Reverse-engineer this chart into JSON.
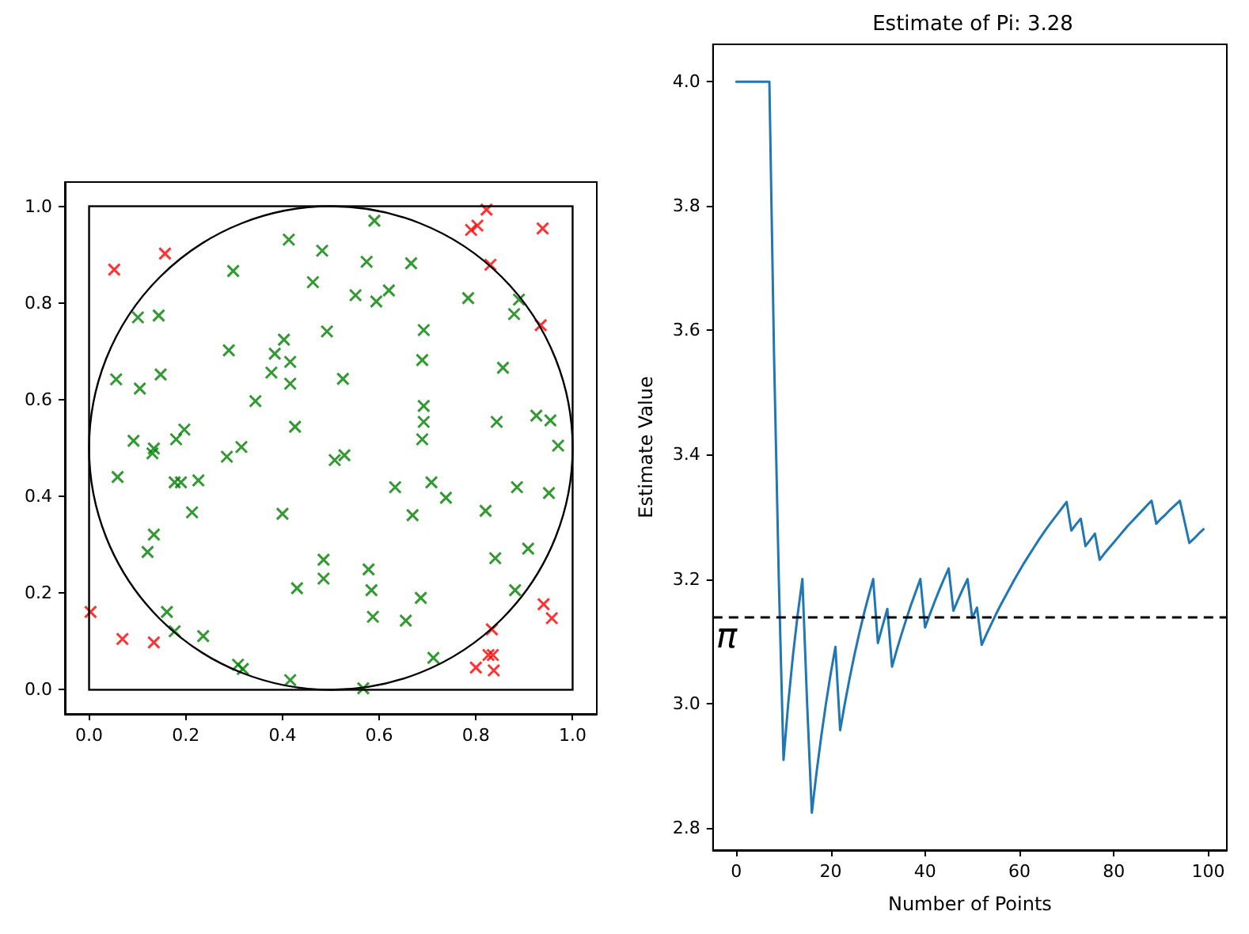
{
  "chart_data": [
    {
      "type": "scatter",
      "xlim": [
        -0.05,
        1.05
      ],
      "ylim": [
        -0.05,
        1.05
      ],
      "xticks": [
        {
          "value": 0,
          "label": "0.0"
        },
        0.2,
        0.4,
        0.6,
        0.8,
        {
          "value": 1,
          "label": "1.0"
        }
      ],
      "yticks": [
        {
          "value": 0,
          "label": "0.0"
        },
        0.2,
        0.4,
        0.6,
        0.8,
        {
          "value": 1,
          "label": "1.0"
        }
      ],
      "series": [
        {
          "color": "#008000",
          "marker": "cross",
          "x": [
            0.413,
            0.482,
            0.298,
            0.463,
            0.101,
            0.144,
            0.492,
            0.289,
            0.403,
            0.384,
            0.416,
            0.377,
            0.416,
            0.056,
            0.105,
            0.148,
            0.344,
            0.426,
            0.092,
            0.131,
            0.134,
            0.18,
            0.197,
            0.285,
            0.315,
            0.059,
            0.177,
            0.19,
            0.226,
            0.213,
            0.4,
            0.134,
            0.121,
            0.485,
            0.485,
            0.43,
            0.161,
            0.177,
            0.236,
            0.308,
            0.318,
            0.416,
            0.59,
            0.574,
            0.666,
            0.551,
            0.594,
            0.62,
            0.784,
            0.889,
            0.879,
            0.692,
            0.689,
            0.856,
            0.525,
            0.692,
            0.692,
            0.689,
            0.843,
            0.925,
            0.954,
            0.97,
            0.508,
            0.528,
            0.633,
            0.708,
            0.738,
            0.669,
            0.885,
            0.951,
            0.82,
            0.578,
            0.584,
            0.587,
            0.655,
            0.686,
            0.84,
            0.908,
            0.881,
            0.712,
            0.567
          ],
          "values": [
            0.931,
            0.908,
            0.866,
            0.843,
            0.77,
            0.774,
            0.741,
            0.702,
            0.724,
            0.695,
            0.678,
            0.656,
            0.633,
            0.642,
            0.623,
            0.652,
            0.597,
            0.544,
            0.515,
            0.489,
            0.499,
            0.518,
            0.538,
            0.482,
            0.502,
            0.44,
            0.429,
            0.429,
            0.433,
            0.367,
            0.364,
            0.321,
            0.285,
            0.269,
            0.23,
            0.21,
            0.161,
            0.121,
            0.111,
            0.052,
            0.043,
            0.02,
            0.97,
            0.885,
            0.882,
            0.816,
            0.803,
            0.826,
            0.81,
            0.807,
            0.777,
            0.744,
            0.682,
            0.666,
            0.643,
            0.587,
            0.554,
            0.518,
            0.554,
            0.567,
            0.557,
            0.505,
            0.475,
            0.485,
            0.419,
            0.429,
            0.397,
            0.361,
            0.419,
            0.407,
            0.37,
            0.249,
            0.206,
            0.151,
            0.143,
            0.19,
            0.272,
            0.292,
            0.206,
            0.066,
            0.003
          ]
        },
        {
          "color": "#ff0000",
          "marker": "cross",
          "x": [
            0.003,
            0.052,
            0.069,
            0.134,
            0.157,
            0.79,
            0.803,
            0.822,
            0.938,
            0.83,
            0.934,
            0.8,
            0.826,
            0.835,
            0.837,
            0.833,
            0.94,
            0.957
          ],
          "values": [
            0.161,
            0.869,
            0.105,
            0.098,
            0.902,
            0.951,
            0.96,
            0.993,
            0.954,
            0.879,
            0.754,
            0.046,
            0.072,
            0.072,
            0.04,
            0.125,
            0.177,
            0.148
          ]
        }
      ]
    },
    {
      "type": "line",
      "title": "Estimate of Pi: 3.28",
      "xlabel": "Number of Points",
      "ylabel": "Estimate Value",
      "x": [
        0,
        1,
        2,
        3,
        4,
        5,
        6,
        7,
        8,
        9,
        10,
        11,
        12,
        13,
        14,
        15,
        16,
        17,
        18,
        19,
        20,
        21,
        22,
        23,
        24,
        25,
        26,
        27,
        28,
        29,
        30,
        31,
        32,
        33,
        34,
        35,
        36,
        37,
        38,
        39,
        40,
        41,
        42,
        43,
        44,
        45,
        46,
        47,
        48,
        49,
        50,
        51,
        52,
        53,
        54,
        55,
        56,
        57,
        58,
        59,
        60,
        61,
        62,
        63,
        64,
        65,
        66,
        67,
        68,
        69,
        70,
        71,
        72,
        73,
        74,
        75,
        76,
        77,
        78,
        79,
        80,
        81,
        82,
        83,
        84,
        85,
        86,
        87,
        88,
        89,
        90,
        91,
        92,
        93,
        94,
        95,
        96,
        97,
        98,
        99
      ],
      "series": [
        {
          "color": "#1f77b4",
          "marker": "none",
          "values": [
            4.0,
            4.0,
            4.0,
            4.0,
            4.0,
            4.0,
            4.0,
            4.0,
            3.556,
            3.2,
            2.909,
            3.0,
            3.077,
            3.143,
            3.2,
            3.0,
            2.824,
            2.889,
            2.947,
            3.0,
            3.048,
            3.091,
            2.957,
            3.0,
            3.04,
            3.077,
            3.111,
            3.143,
            3.172,
            3.2,
            3.097,
            3.125,
            3.152,
            3.059,
            3.086,
            3.111,
            3.135,
            3.158,
            3.179,
            3.2,
            3.122,
            3.143,
            3.163,
            3.182,
            3.2,
            3.217,
            3.149,
            3.167,
            3.184,
            3.2,
            3.137,
            3.154,
            3.094,
            3.111,
            3.127,
            3.143,
            3.158,
            3.172,
            3.186,
            3.2,
            3.213,
            3.226,
            3.238,
            3.25,
            3.262,
            3.273,
            3.284,
            3.294,
            3.304,
            3.314,
            3.324,
            3.278,
            3.288,
            3.297,
            3.253,
            3.263,
            3.273,
            3.231,
            3.241,
            3.25,
            3.259,
            3.268,
            3.277,
            3.286,
            3.294,
            3.302,
            3.31,
            3.318,
            3.326,
            3.289,
            3.297,
            3.304,
            3.312,
            3.319,
            3.326,
            3.292,
            3.258,
            3.265,
            3.273,
            3.28
          ]
        }
      ],
      "xlim": [
        -4.95,
        103.95
      ],
      "xticks": [
        0,
        20,
        40,
        60,
        80,
        100
      ],
      "ylim": [
        2.764,
        4.06
      ],
      "yticks": [
        2.8,
        {
          "value": 3,
          "label": "3.0"
        },
        3.2,
        3.4,
        3.6,
        3.8,
        {
          "value": 4,
          "label": "4.0"
        }
      ],
      "ref_lines": [
        {
          "axis": "y",
          "value": 3.142,
          "label": "π",
          "color": "#000000",
          "line_style": "dashed"
        }
      ]
    }
  ]
}
